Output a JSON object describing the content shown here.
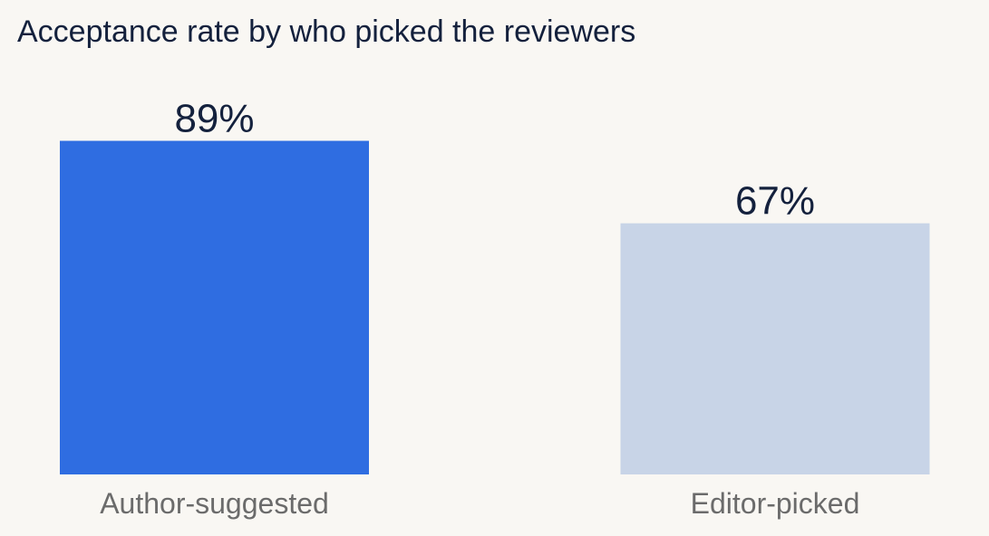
{
  "chart_data": {
    "type": "bar",
    "title": "Acceptance rate by who picked the reviewers",
    "categories": [
      "Author-suggested",
      "Editor-picked"
    ],
    "values": [
      89,
      67
    ],
    "value_labels": [
      "89%",
      "67%"
    ],
    "colors": [
      "#2f6de1",
      "#c8d4e7"
    ]
  }
}
